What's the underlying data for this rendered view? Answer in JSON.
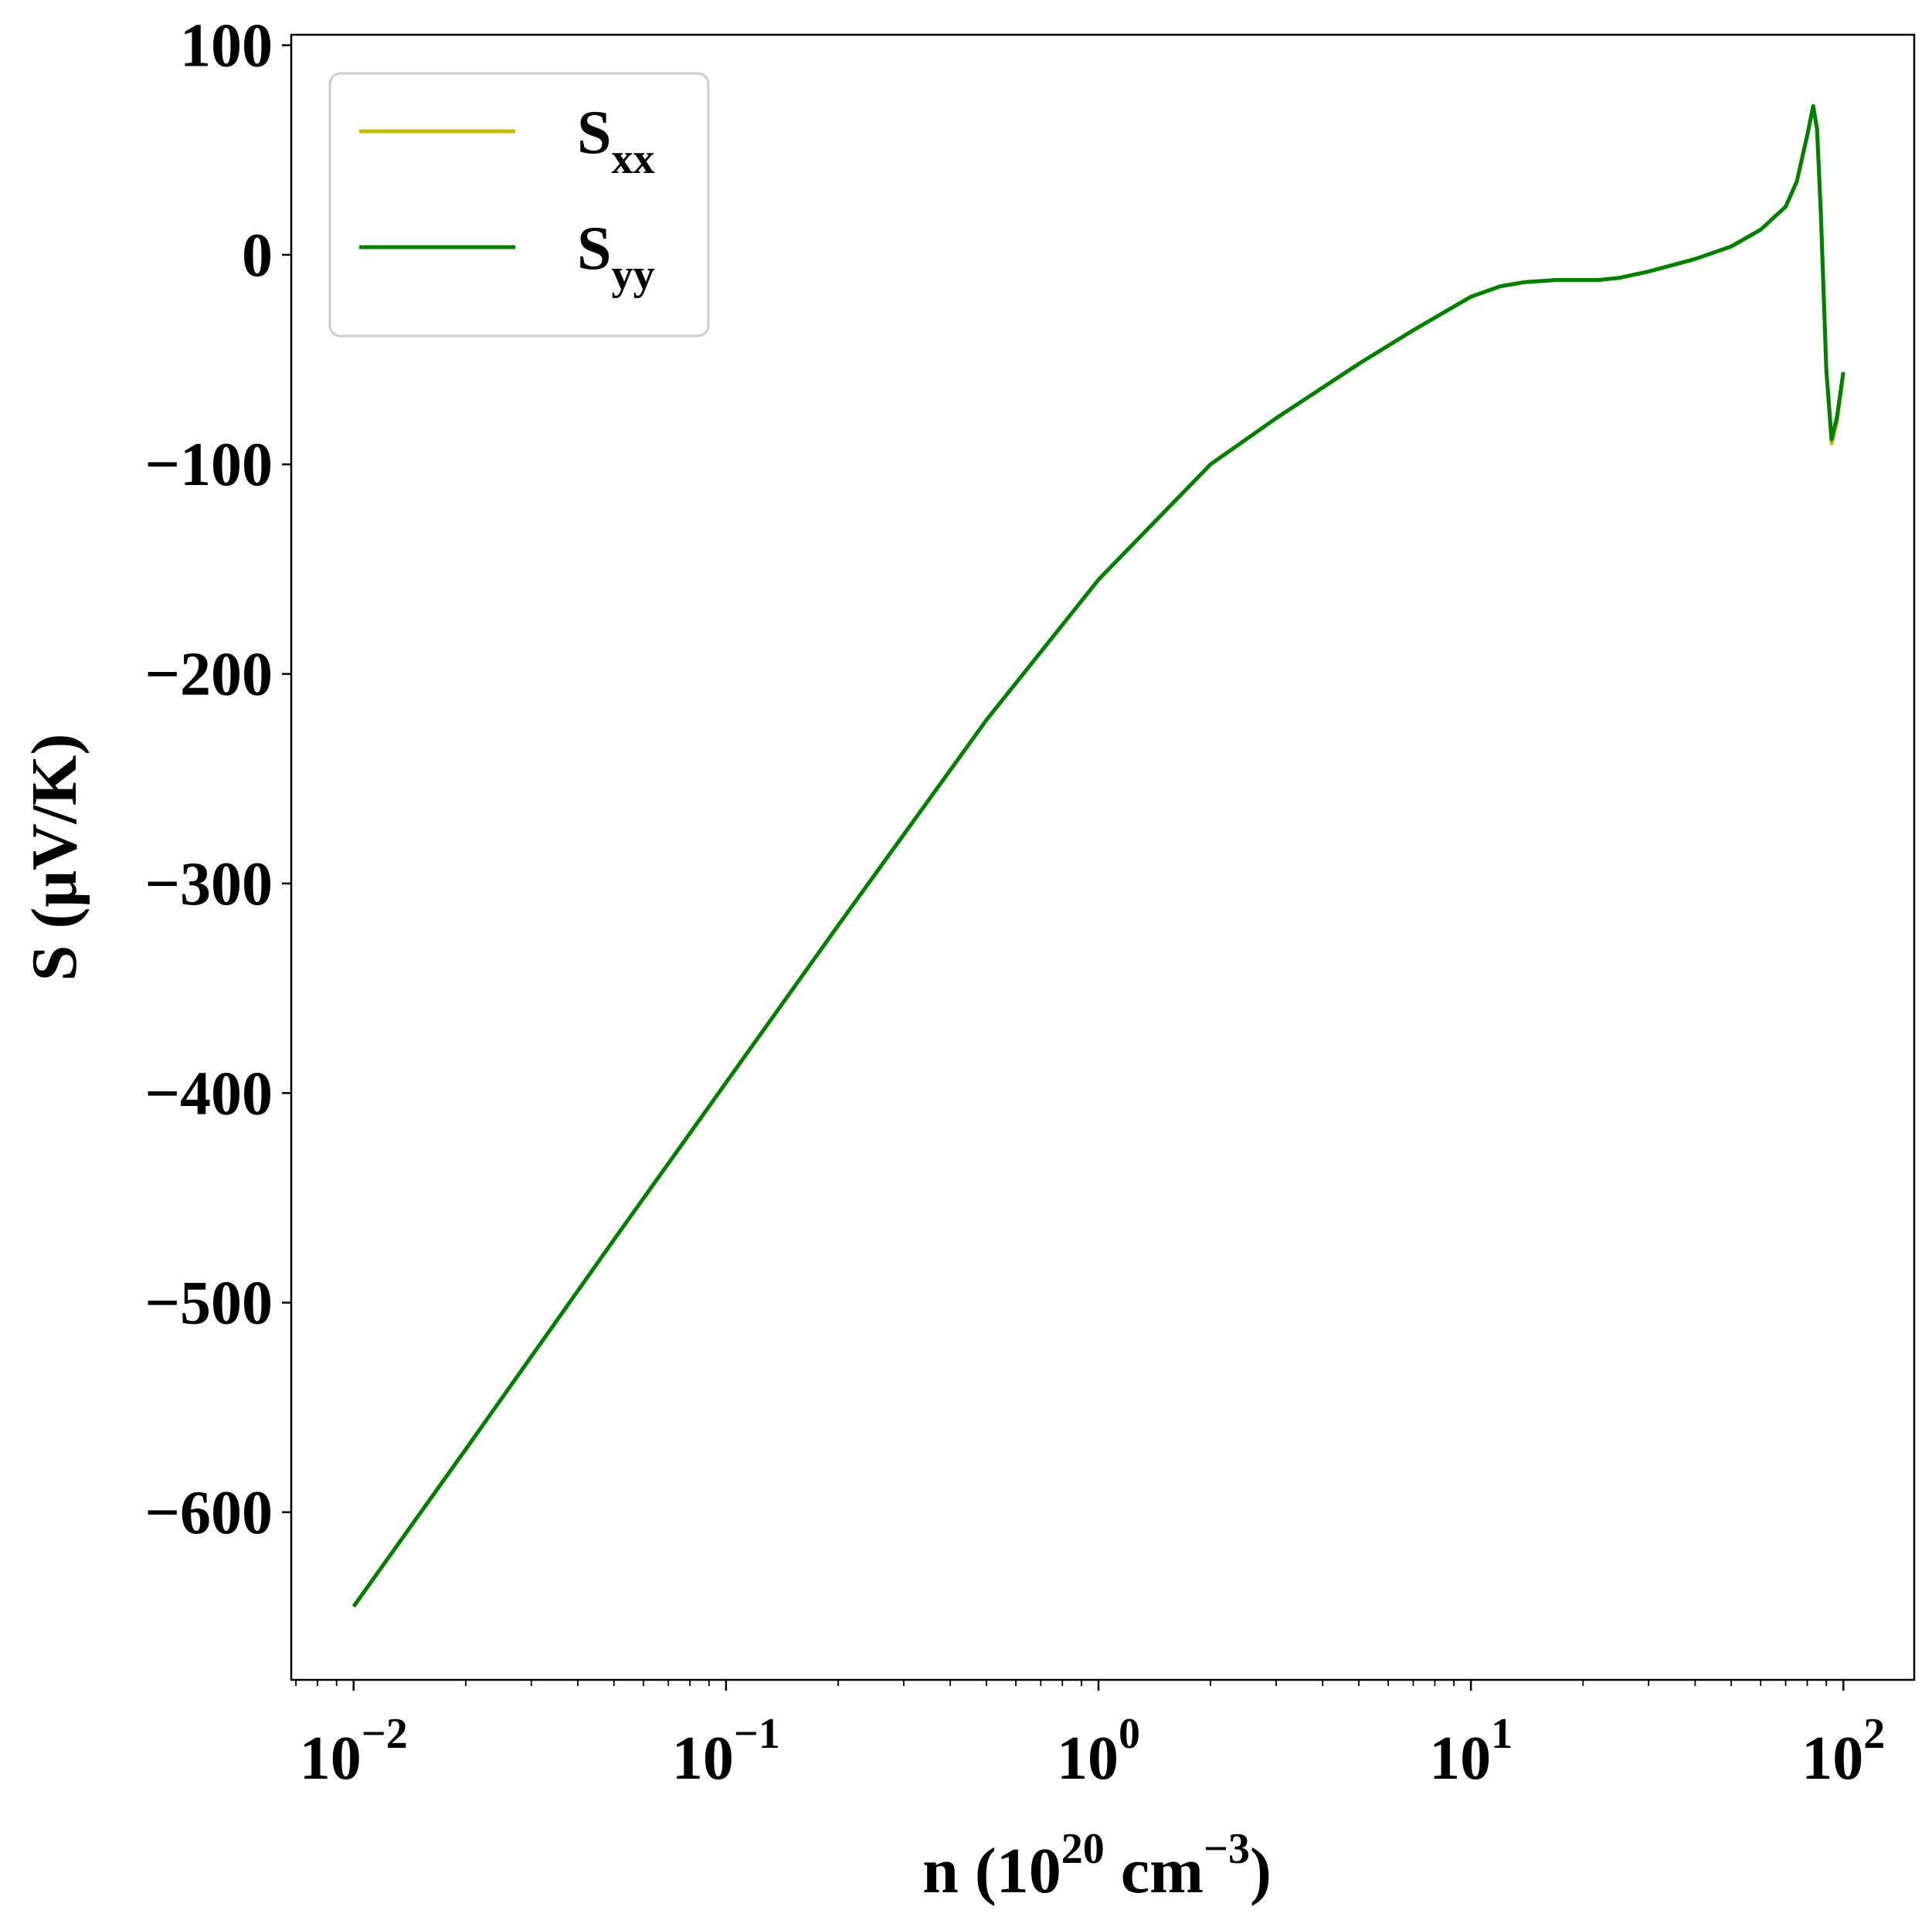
{
  "chart_data": {
    "type": "line",
    "title": "",
    "xlabel": {
      "prefix": "n (10",
      "sup1": "20",
      "mid": " cm",
      "sup2": "−3",
      "suffix": ")"
    },
    "ylabel": "S (μV/K)",
    "xscale": "log",
    "xlim": [
      0.0068,
      155
    ],
    "ylim": [
      -680,
      105
    ],
    "x_ticks": [
      {
        "base": "10",
        "exp": "−2",
        "value": 0.01
      },
      {
        "base": "10",
        "exp": "−1",
        "value": 0.1
      },
      {
        "base": "10",
        "exp": "0",
        "value": 1
      },
      {
        "base": "10",
        "exp": "1",
        "value": 10
      },
      {
        "base": "10",
        "exp": "2",
        "value": 100
      }
    ],
    "y_ticks": [
      {
        "label": "100",
        "value": 100
      },
      {
        "label": "0",
        "value": 0
      },
      {
        "label": "−100",
        "value": -100
      },
      {
        "label": "−200",
        "value": -200
      },
      {
        "label": "−300",
        "value": -300
      },
      {
        "label": "−400",
        "value": -400
      },
      {
        "label": "−500",
        "value": -500
      },
      {
        "label": "−600",
        "value": -600
      }
    ],
    "grid": false,
    "legend_position": "top-left",
    "series": [
      {
        "name": "S",
        "name_sub": "xx",
        "color": "#bfbf00",
        "x": [
          0.01,
          0.02,
          0.05,
          0.1,
          0.2,
          0.5,
          1,
          2,
          3,
          5,
          7,
          10,
          12,
          14,
          17,
          20,
          22,
          25,
          30,
          40,
          50,
          60,
          70,
          75,
          80,
          83,
          85,
          87,
          90,
          93,
          96,
          100
        ],
        "y": [
          -645,
          -570,
          -470,
          -395,
          -320,
          -222,
          -155,
          -100,
          -78,
          -52,
          -36,
          -20,
          -15,
          -13,
          -12,
          -12,
          -12,
          -11,
          -8,
          -2,
          4,
          12,
          23,
          35,
          57,
          71,
          60,
          20,
          -55,
          -90,
          -80,
          -57
        ]
      },
      {
        "name": "S",
        "name_sub": "yy",
        "color": "#008000",
        "x": [
          0.01,
          0.02,
          0.05,
          0.1,
          0.2,
          0.5,
          1,
          2,
          3,
          5,
          7,
          10,
          12,
          14,
          17,
          20,
          22,
          25,
          30,
          40,
          50,
          60,
          70,
          75,
          80,
          83,
          85,
          87,
          90,
          93,
          96,
          100
        ],
        "y": [
          -645,
          -570,
          -470,
          -395,
          -320,
          -222,
          -155,
          -100,
          -78,
          -52,
          -36,
          -20,
          -15,
          -13,
          -12,
          -12,
          -12,
          -11,
          -8,
          -2,
          4,
          12,
          23,
          35,
          57,
          71,
          60,
          20,
          -55,
          -88,
          -78,
          -56
        ]
      }
    ]
  }
}
